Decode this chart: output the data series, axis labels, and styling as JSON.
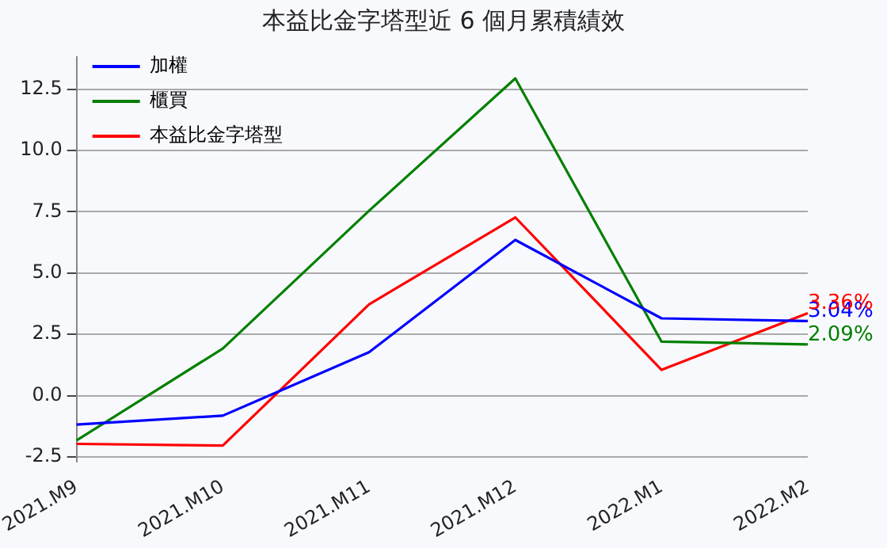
{
  "chart_data": {
    "type": "line",
    "title": "本益比金字塔型近 6 個月累積績效",
    "categories": [
      "2021.M9",
      "2021.M10",
      "2021.M11",
      "2021.M12",
      "2022.M1",
      "2022.M2"
    ],
    "series": [
      {
        "name": "加權",
        "color": "#0000ff",
        "values": [
          -1.18,
          -0.82,
          1.77,
          6.35,
          3.15,
          3.04
        ],
        "value_labels": [
          null,
          null,
          null,
          null,
          null,
          "3.04%"
        ]
      },
      {
        "name": "櫃買",
        "color": "#008000",
        "values": [
          -1.83,
          1.92,
          7.54,
          12.94,
          2.2,
          2.09
        ],
        "value_labels": [
          null,
          null,
          null,
          null,
          null,
          "2.09%"
        ]
      },
      {
        "name": "本益比金字塔型",
        "color": "#ff0000",
        "values": [
          -1.97,
          -2.04,
          3.72,
          7.27,
          1.05,
          3.36
        ],
        "value_labels": [
          null,
          null,
          null,
          null,
          null,
          "3.36%"
        ]
      }
    ],
    "ylim": [
      -2.7,
      13.8
    ],
    "yticks": [
      -2.5,
      {
        "value": 0,
        "label": "0.0"
      },
      2.5,
      {
        "value": 5,
        "label": "5.0"
      },
      7.5,
      {
        "value": 10,
        "label": "10.0"
      },
      12.5
    ],
    "grid": "y",
    "legend": "top left",
    "marker": "none",
    "line_style": "solid"
  }
}
